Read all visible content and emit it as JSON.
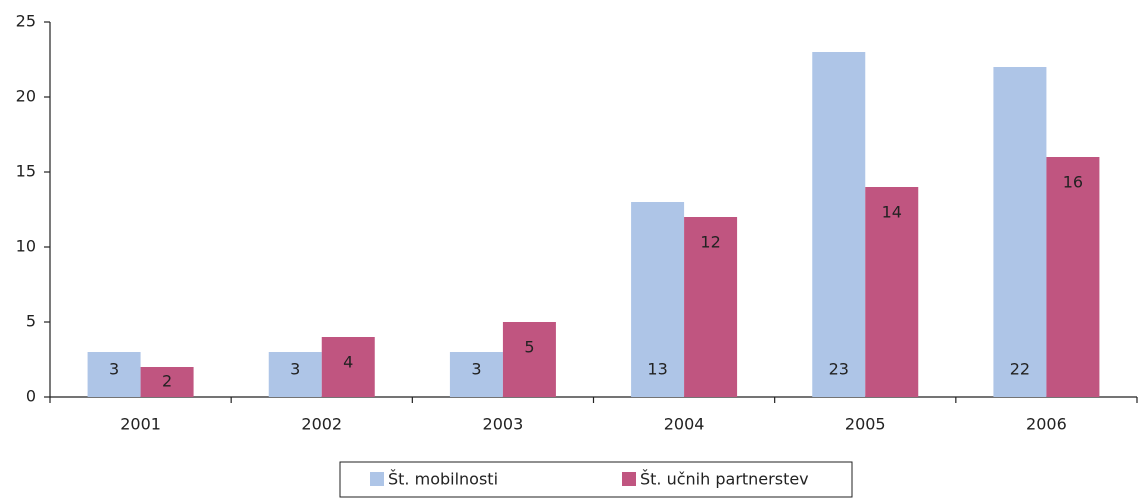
{
  "chart_data": {
    "type": "bar",
    "categories": [
      "2001",
      "2002",
      "2003",
      "2004",
      "2005",
      "2006"
    ],
    "series": [
      {
        "name": "Št. mobilnosti",
        "color": "#aec5e7",
        "values": [
          3,
          3,
          3,
          13,
          23,
          22
        ]
      },
      {
        "name": "Št. učnih partnerstev",
        "color": "#c05580",
        "values": [
          2,
          4,
          5,
          12,
          14,
          16
        ]
      }
    ],
    "ylim": [
      0,
      25
    ],
    "yticks": [
      0,
      5,
      10,
      15,
      20,
      25
    ],
    "grid": false,
    "legend": "bottom"
  }
}
